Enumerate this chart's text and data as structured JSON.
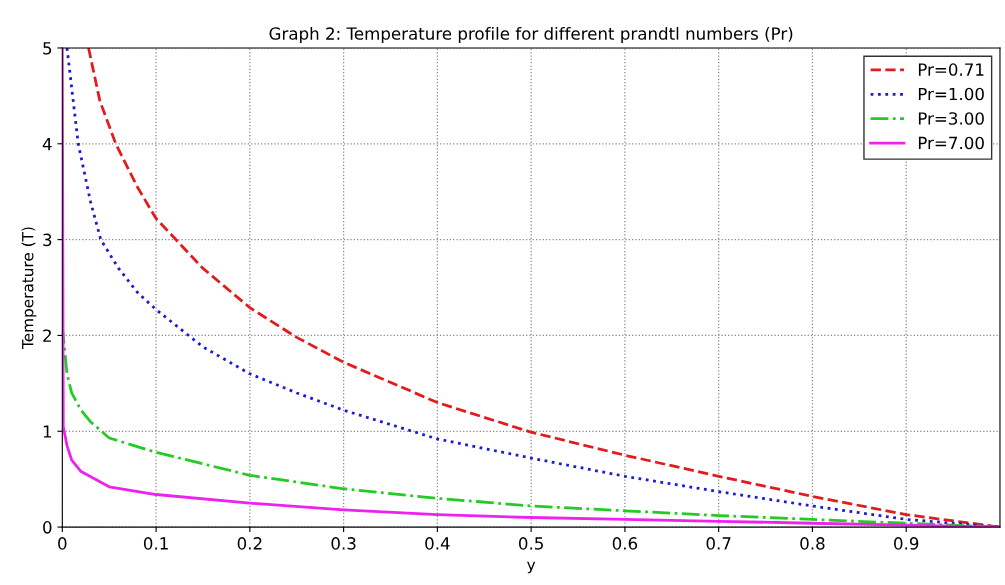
{
  "chart_data": {
    "type": "line",
    "title": "Graph 2: Temperature profile for different prandtl numbers (Pr)",
    "xlabel": "y",
    "ylabel": "Temperature (T)",
    "xlim": [
      0,
      1
    ],
    "xticks": [
      0,
      0.1,
      0.2,
      0.3,
      0.4,
      0.5,
      0.6,
      0.7,
      0.8,
      0.9
    ],
    "ylim": [
      0,
      5
    ],
    "yticks": [
      0,
      1,
      2,
      3,
      4,
      5
    ],
    "grid": true,
    "legend": "top right",
    "marker": "none",
    "series": [
      {
        "name": "Pr=0.71",
        "color": "#e41a1c",
        "line_style": "dashed",
        "x": [
          0.028,
          0.04,
          0.057,
          0.08,
          0.1,
          0.15,
          0.2,
          0.25,
          0.3,
          0.4,
          0.5,
          0.6,
          0.7,
          0.8,
          0.9,
          1.0
        ],
        "values": [
          5,
          4.45,
          4.0,
          3.55,
          3.22,
          2.7,
          2.29,
          1.98,
          1.72,
          1.3,
          0.99,
          0.75,
          0.53,
          0.32,
          0.13,
          0
        ]
      },
      {
        "name": "Pr=1.00",
        "color": "#1a1adb",
        "line_style": "dotted",
        "x": [
          0.005,
          0.017,
          0.03,
          0.041,
          0.06,
          0.08,
          0.1,
          0.15,
          0.2,
          0.25,
          0.3,
          0.4,
          0.5,
          0.6,
          0.7,
          0.8,
          0.9,
          1.0
        ],
        "values": [
          5,
          4.0,
          3.4,
          3.0,
          2.7,
          2.45,
          2.27,
          1.88,
          1.6,
          1.4,
          1.22,
          0.92,
          0.72,
          0.53,
          0.37,
          0.22,
          0.08,
          0
        ]
      },
      {
        "name": "Pr=3.00",
        "color": "#22cc22",
        "line_style": "dashdot",
        "x": [
          0,
          0.005,
          0.01,
          0.02,
          0.03,
          0.05,
          0.1,
          0.2,
          0.3,
          0.4,
          0.5,
          0.6,
          0.7,
          0.8,
          0.9,
          1.0
        ],
        "values": [
          2.1,
          1.6,
          1.4,
          1.22,
          1.1,
          0.93,
          0.78,
          0.54,
          0.4,
          0.3,
          0.22,
          0.17,
          0.12,
          0.08,
          0.04,
          0
        ]
      },
      {
        "name": "Pr=7.00",
        "color": "#ee22ee",
        "line_style": "solid",
        "x": [
          0,
          0.001,
          0.005,
          0.01,
          0.02,
          0.05,
          0.1,
          0.2,
          0.3,
          0.4,
          0.5,
          0.6,
          0.7,
          0.8,
          0.9,
          1.0
        ],
        "values": [
          5,
          1.05,
          0.85,
          0.7,
          0.58,
          0.42,
          0.34,
          0.25,
          0.18,
          0.13,
          0.1,
          0.08,
          0.06,
          0.04,
          0.02,
          0
        ]
      }
    ]
  }
}
